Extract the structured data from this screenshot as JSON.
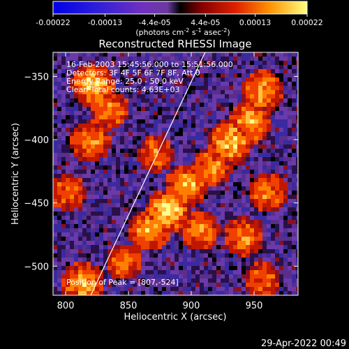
{
  "colorbar": {
    "tick_labels": [
      "-0.00022",
      "-0.00013",
      "-4.4e-05",
      "4.4e-05",
      "0.00013",
      "0.00022"
    ],
    "tick_values": [
      -0.00022,
      -0.00013,
      -4.4e-05,
      4.4e-05,
      0.00013,
      0.00022
    ],
    "range": [
      -0.00022,
      0.00022
    ],
    "units_label": "(photons cm",
    "units_sup1": "-2",
    "units_mid": " s",
    "units_sup2": "-1",
    "units_end": " asec",
    "units_sup3": "-2",
    "units_close": ")"
  },
  "chart_data": {
    "type": "heatmap",
    "title": "Reconstructed RHESSI Image",
    "xlabel": "Heliocentric X (arcsec)",
    "ylabel": "Heliocentric Y (arcsec)",
    "xlim": [
      790,
      985
    ],
    "ylim": [
      -523,
      -331
    ],
    "x_ticks": [
      800,
      850,
      900,
      950
    ],
    "x_tick_labels": [
      "800",
      "850",
      "900",
      "950"
    ],
    "y_ticks": [
      -350,
      -400,
      -450,
      -500
    ],
    "y_tick_labels": [
      "−350",
      "−400",
      "−450",
      "−500"
    ],
    "annotations": [
      "16-Feb-2003 15:45:56.000 to 15:51:56.000",
      "Detectors: 3F 4F 5F 6F 7F 8F, Att 0",
      "Energy Range: 25.0 - 50.0 keV",
      "Clean     Total counts: 4.63E+03"
    ],
    "peak_label": "Position of Peak = [807,-524]",
    "limb_line": [
      [
        820,
        -523
      ],
      [
        911,
        -331
      ]
    ],
    "hot_regions": [
      {
        "x": 820,
        "y": -355,
        "level": 0.9
      },
      {
        "x": 818,
        "y": -400,
        "level": 0.75
      },
      {
        "x": 833,
        "y": -375,
        "level": 0.7
      },
      {
        "x": 880,
        "y": -455,
        "level": 1.0
      },
      {
        "x": 895,
        "y": -435,
        "level": 0.85
      },
      {
        "x": 865,
        "y": -470,
        "level": 0.8
      },
      {
        "x": 905,
        "y": -470,
        "level": 0.75
      },
      {
        "x": 930,
        "y": -400,
        "level": 0.95
      },
      {
        "x": 945,
        "y": -385,
        "level": 0.85
      },
      {
        "x": 915,
        "y": -420,
        "level": 0.7
      },
      {
        "x": 955,
        "y": -360,
        "level": 0.8
      },
      {
        "x": 960,
        "y": -440,
        "level": 0.65
      },
      {
        "x": 940,
        "y": -475,
        "level": 0.7
      },
      {
        "x": 955,
        "y": -510,
        "level": 0.6
      },
      {
        "x": 812,
        "y": -512,
        "level": 0.85
      },
      {
        "x": 845,
        "y": -495,
        "level": 0.6
      },
      {
        "x": 800,
        "y": -440,
        "level": 0.6
      },
      {
        "x": 870,
        "y": -410,
        "level": 0.6
      }
    ]
  },
  "footer": {
    "timestamp": "29-Apr-2022 00:49"
  }
}
